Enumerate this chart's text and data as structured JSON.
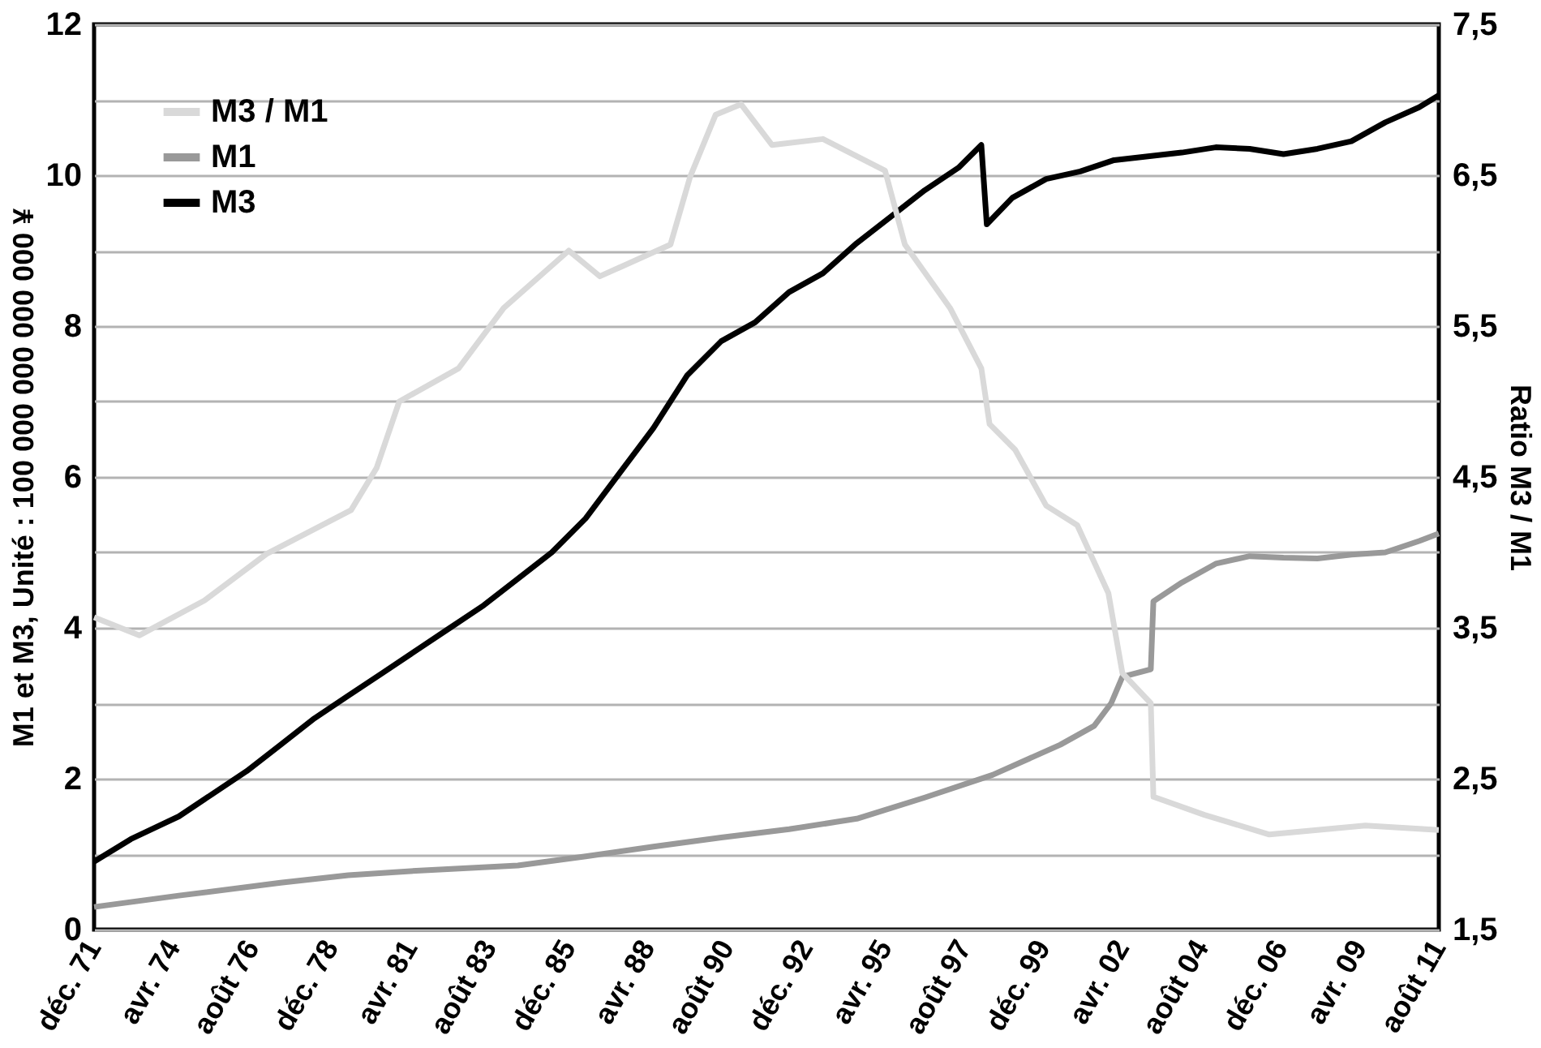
{
  "chart_data": {
    "type": "line",
    "ylabel": "M1 et M3, Unité : 100 000 000 000 000 ¥",
    "y2label": "Ratio M3 / M1",
    "xlim": [
      "1971-12",
      "2011-08"
    ],
    "xticks": [
      {
        "value": "1971-12",
        "label": "déc. 71"
      },
      {
        "value": "1974-04",
        "label": "avr. 74"
      },
      {
        "value": "1976-08",
        "label": "août 76"
      },
      {
        "value": "1978-12",
        "label": "déc. 78"
      },
      {
        "value": "1981-04",
        "label": "avr. 81"
      },
      {
        "value": "1983-08",
        "label": "août 83"
      },
      {
        "value": "1985-12",
        "label": "déc. 85"
      },
      {
        "value": "1988-04",
        "label": "avr. 88"
      },
      {
        "value": "1990-08",
        "label": "août 90"
      },
      {
        "value": "1992-12",
        "label": "déc. 92"
      },
      {
        "value": "1995-04",
        "label": "avr. 95"
      },
      {
        "value": "1997-08",
        "label": "août 97"
      },
      {
        "value": "1999-12",
        "label": "déc. 99"
      },
      {
        "value": "2002-04",
        "label": "avr. 02"
      },
      {
        "value": "2004-08",
        "label": "août 04"
      },
      {
        "value": "2006-12",
        "label": "déc. 06"
      },
      {
        "value": "2009-04",
        "label": "avr. 09"
      },
      {
        "value": "2011-08",
        "label": "août 11"
      }
    ],
    "ylim": [
      0,
      12
    ],
    "yticks": [
      0,
      {
        "value": 1,
        "label": null
      },
      2,
      {
        "value": 3,
        "label": null
      },
      4,
      {
        "value": 5,
        "label": null
      },
      6,
      {
        "value": 7,
        "label": null
      },
      8,
      {
        "value": 9,
        "label": null
      },
      10,
      {
        "value": 11,
        "label": null
      },
      12
    ],
    "y2lim": [
      1.5,
      7.5
    ],
    "y2ticks": [
      {
        "value": 1.5,
        "label": "1,5"
      },
      {
        "value": 2.5,
        "label": "2,5"
      },
      {
        "value": 3.5,
        "label": "3,5"
      },
      {
        "value": 4.5,
        "label": "4,5"
      },
      {
        "value": 5.5,
        "label": "5,5"
      },
      {
        "value": 6.5,
        "label": "6,5"
      },
      {
        "value": 7.5,
        "label": "7,5"
      }
    ],
    "grid": "y",
    "legend": "top left",
    "marker": "none",
    "line_style": "solid",
    "series": [
      {
        "name": "M3 / M1",
        "color": "#d9d9d9",
        "axis": "y2",
        "x": [
          "1971-12",
          "1973-04",
          "1975-03",
          "1977-01",
          "1979-07",
          "1980-04",
          "1980-12",
          "1982-09",
          "1984-01",
          "1985-12",
          "1986-11",
          "1988-12",
          "1989-07",
          "1990-04",
          "1991-01",
          "1991-12",
          "1993-06",
          "1995-04",
          "1995-11",
          "1997-03",
          "1998-02",
          "1998-05",
          "1999-02",
          "2000-01",
          "2000-12",
          "2001-11",
          "2002-04",
          "2003-02",
          "2003-03",
          "2004-09",
          "2006-08",
          "2009-06",
          "2011-08"
        ],
        "values": [
          3.57,
          3.45,
          3.68,
          3.99,
          4.28,
          4.56,
          5.0,
          5.22,
          5.62,
          6.0,
          5.83,
          6.04,
          6.49,
          6.9,
          6.97,
          6.7,
          6.74,
          6.53,
          6.04,
          5.62,
          5.22,
          4.85,
          4.68,
          4.31,
          4.18,
          3.73,
          3.2,
          3.0,
          2.38,
          2.26,
          2.13,
          2.19,
          2.16
        ]
      },
      {
        "name": "M1",
        "color": "#999999",
        "x": [
          "1971-12",
          "1974-06",
          "1977-06",
          "1979-06",
          "1981-06",
          "1984-06",
          "1986-06",
          "1988-06",
          "1990-06",
          "1992-06",
          "1994-06",
          "1996-06",
          "1998-06",
          "2000-06",
          "2001-06",
          "2001-12",
          "2002-04",
          "2003-02",
          "2003-03",
          "2004-01",
          "2005-01",
          "2006-01",
          "2007-01",
          "2008-01",
          "2009-01",
          "2010-01",
          "2011-01",
          "2011-08"
        ],
        "values": [
          0.3,
          0.45,
          0.62,
          0.72,
          0.78,
          0.85,
          0.97,
          1.1,
          1.22,
          1.33,
          1.47,
          1.75,
          2.05,
          2.45,
          2.7,
          3.0,
          3.35,
          3.45,
          4.35,
          4.6,
          4.85,
          4.95,
          4.93,
          4.92,
          4.97,
          5.0,
          5.15,
          5.25
        ]
      },
      {
        "name": "M3",
        "color": "#000000",
        "x": [
          "1971-12",
          "1973-01",
          "1974-06",
          "1975-06",
          "1976-06",
          "1977-06",
          "1978-06",
          "1979-06",
          "1980-06",
          "1981-06",
          "1982-06",
          "1983-06",
          "1984-06",
          "1985-06",
          "1986-06",
          "1987-06",
          "1988-06",
          "1989-06",
          "1990-06",
          "1991-06",
          "1992-06",
          "1993-06",
          "1994-06",
          "1995-06",
          "1996-06",
          "1997-06",
          "1998-02",
          "1998-04",
          "1999-01",
          "2000-01",
          "2001-01",
          "2002-01",
          "2003-01",
          "2004-01",
          "2005-01",
          "2006-01",
          "2007-01",
          "2008-01",
          "2009-01",
          "2010-01",
          "2011-01",
          "2011-08"
        ],
        "values": [
          0.9,
          1.2,
          1.5,
          1.8,
          2.1,
          2.45,
          2.8,
          3.1,
          3.4,
          3.7,
          4.0,
          4.3,
          4.65,
          5.0,
          5.45,
          6.05,
          6.65,
          7.35,
          7.8,
          8.05,
          8.45,
          8.7,
          9.1,
          9.45,
          9.8,
          10.1,
          10.4,
          9.35,
          9.7,
          9.95,
          10.05,
          10.2,
          10.25,
          10.3,
          10.37,
          10.35,
          10.28,
          10.35,
          10.45,
          10.7,
          10.9,
          11.06
        ]
      }
    ]
  }
}
